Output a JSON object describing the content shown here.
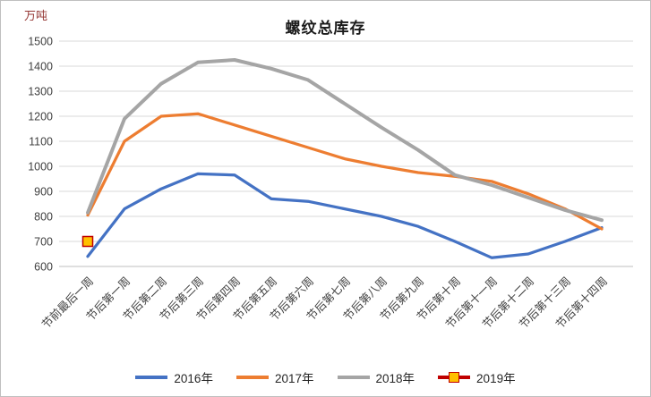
{
  "chart_data": {
    "type": "line",
    "title": "螺纹总库存",
    "ylabel": "万吨",
    "xlabel": "",
    "grid": true,
    "legend_position": "bottom",
    "ylim": [
      600,
      1500
    ],
    "y_ticks": [
      600,
      700,
      800,
      900,
      1000,
      1100,
      1200,
      1300,
      1400,
      1500
    ],
    "categories": [
      "节前最后一周",
      "节后第一周",
      "节后第二周",
      "节后第三周",
      "节后第四周",
      "节后第五周",
      "节后第六周",
      "节后第七周",
      "节后第八周",
      "节后第九周",
      "节后第十周",
      "节后第十一周",
      "节后第十二周",
      "节后第十三周",
      "节后第十四周"
    ],
    "series": [
      {
        "name": "2016年",
        "color": "#4472C4",
        "values": [
          640,
          830,
          910,
          970,
          965,
          870,
          860,
          830,
          800,
          760,
          700,
          635,
          650,
          700,
          755
        ]
      },
      {
        "name": "2017年",
        "color": "#ED7D31",
        "values": [
          805,
          1100,
          1200,
          1210,
          1165,
          1120,
          1075,
          1030,
          1000,
          975,
          960,
          940,
          890,
          830,
          750
        ]
      },
      {
        "name": "2018年",
        "color": "#A5A5A5",
        "values": [
          815,
          1190,
          1330,
          1415,
          1425,
          1390,
          1345,
          1250,
          1155,
          1065,
          965,
          925,
          875,
          825,
          785
        ]
      },
      {
        "name": "2019年",
        "color": "#C00000",
        "marker": "square",
        "marker_fill": "#FFC000",
        "values": [
          700,
          null,
          null,
          null,
          null,
          null,
          null,
          null,
          null,
          null,
          null,
          null,
          null,
          null,
          null
        ]
      }
    ],
    "colors": {
      "gridline": "#D9D9D9",
      "axis_line": "#BFBFBF",
      "tick_label": "#404040"
    }
  }
}
